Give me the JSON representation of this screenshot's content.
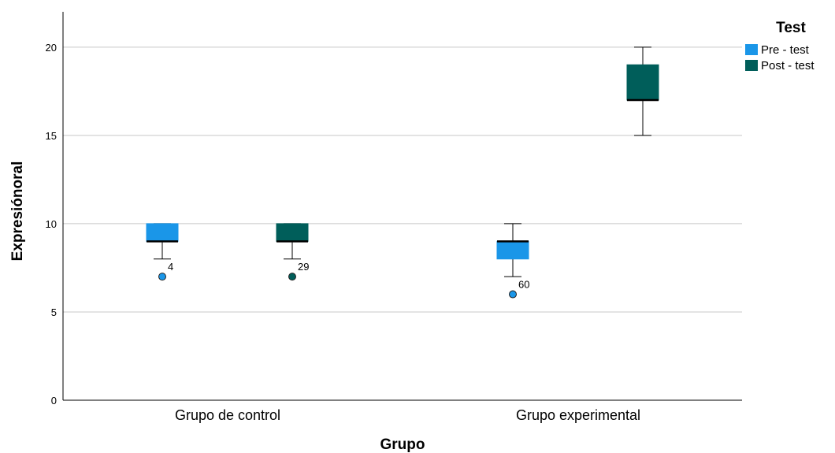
{
  "chart_data": {
    "type": "boxplot",
    "xlabel": "Grupo",
    "ylabel": "Expresiónoral",
    "ylim": [
      0,
      22
    ],
    "yticks": [
      0,
      5,
      10,
      15,
      20
    ],
    "grid": "horizontal",
    "legend": {
      "title": "Test",
      "placement": "top-right"
    },
    "categories": [
      "Grupo de control",
      "Grupo experimental"
    ],
    "series": [
      {
        "name": "Pre - test",
        "color": "#1a96e8",
        "boxes": [
          {
            "min": 8,
            "q1": 9,
            "median": 9,
            "q3": 10,
            "max": 10,
            "outliers": [
              {
                "value": 7,
                "label": "4"
              }
            ]
          },
          {
            "min": 7,
            "q1": 8,
            "median": 9,
            "q3": 9,
            "max": 10,
            "outliers": [
              {
                "value": 6,
                "label": "60"
              }
            ]
          }
        ]
      },
      {
        "name": "Post - test",
        "color": "#005e5a",
        "boxes": [
          {
            "min": 8,
            "q1": 9,
            "median": 9,
            "q3": 10,
            "max": 10,
            "outliers": [
              {
                "value": 7,
                "label": "29"
              }
            ]
          },
          {
            "min": 15,
            "q1": 17,
            "median": 17,
            "q3": 19,
            "max": 20,
            "outliers": []
          }
        ]
      }
    ]
  }
}
